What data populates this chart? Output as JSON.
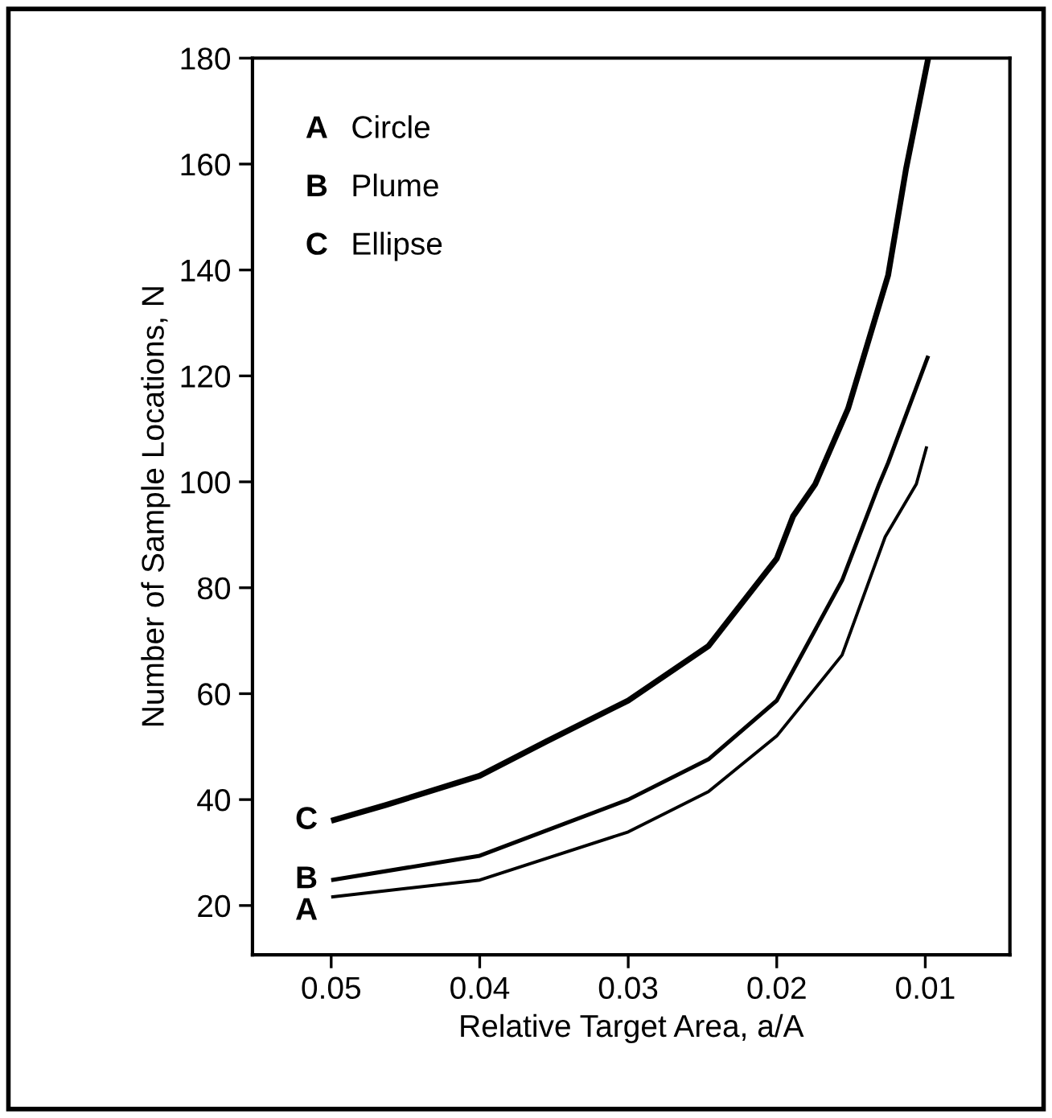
{
  "chart_data": {
    "type": "line",
    "xlabel": "Relative Target Area, a/A",
    "ylabel": "Number of Sample Locations, N",
    "xlim": [
      0.0553,
      0.0043
    ],
    "xticks": [
      0.05,
      0.04,
      0.03,
      0.02,
      0.01
    ],
    "ylim": [
      10.7,
      180
    ],
    "yticks": [
      20,
      40,
      60,
      80,
      100,
      120,
      140,
      160,
      180
    ],
    "grid": false,
    "legend": false,
    "marker": "none",
    "line_style": "solid",
    "annotations": [
      "Circle",
      "Plume",
      "Ellipse"
    ],
    "series": [
      {
        "name": "A",
        "color": "#000000",
        "x": [
          0.05,
          0.04,
          0.03,
          0.0246,
          0.02,
          0.0156,
          0.0127,
          0.0106,
          0.0099
        ],
        "values": [
          21.6,
          24.8,
          33.9,
          41.5,
          52,
          67.3,
          89.6,
          99.6,
          106.7
        ]
      },
      {
        "name": "B",
        "color": "#000000",
        "x": [
          0.05,
          0.04,
          0.03,
          0.0246,
          0.02,
          0.0156,
          0.0131,
          0.0125,
          0.0098
        ],
        "values": [
          24.8,
          29.4,
          40,
          47.6,
          58.7,
          81.4,
          99.6,
          103.6,
          123.8
        ]
      },
      {
        "name": "C",
        "color": "#000000",
        "x": [
          0.05,
          0.0463,
          0.04,
          0.0355,
          0.03,
          0.0246,
          0.02,
          0.0189,
          0.0174,
          0.0152,
          0.0125,
          0.0113,
          0.0098
        ],
        "values": [
          36,
          39,
          44.5,
          51,
          58.7,
          69,
          85.5,
          93.5,
          99.6,
          113.8,
          139,
          159,
          180
        ]
      }
    ]
  }
}
